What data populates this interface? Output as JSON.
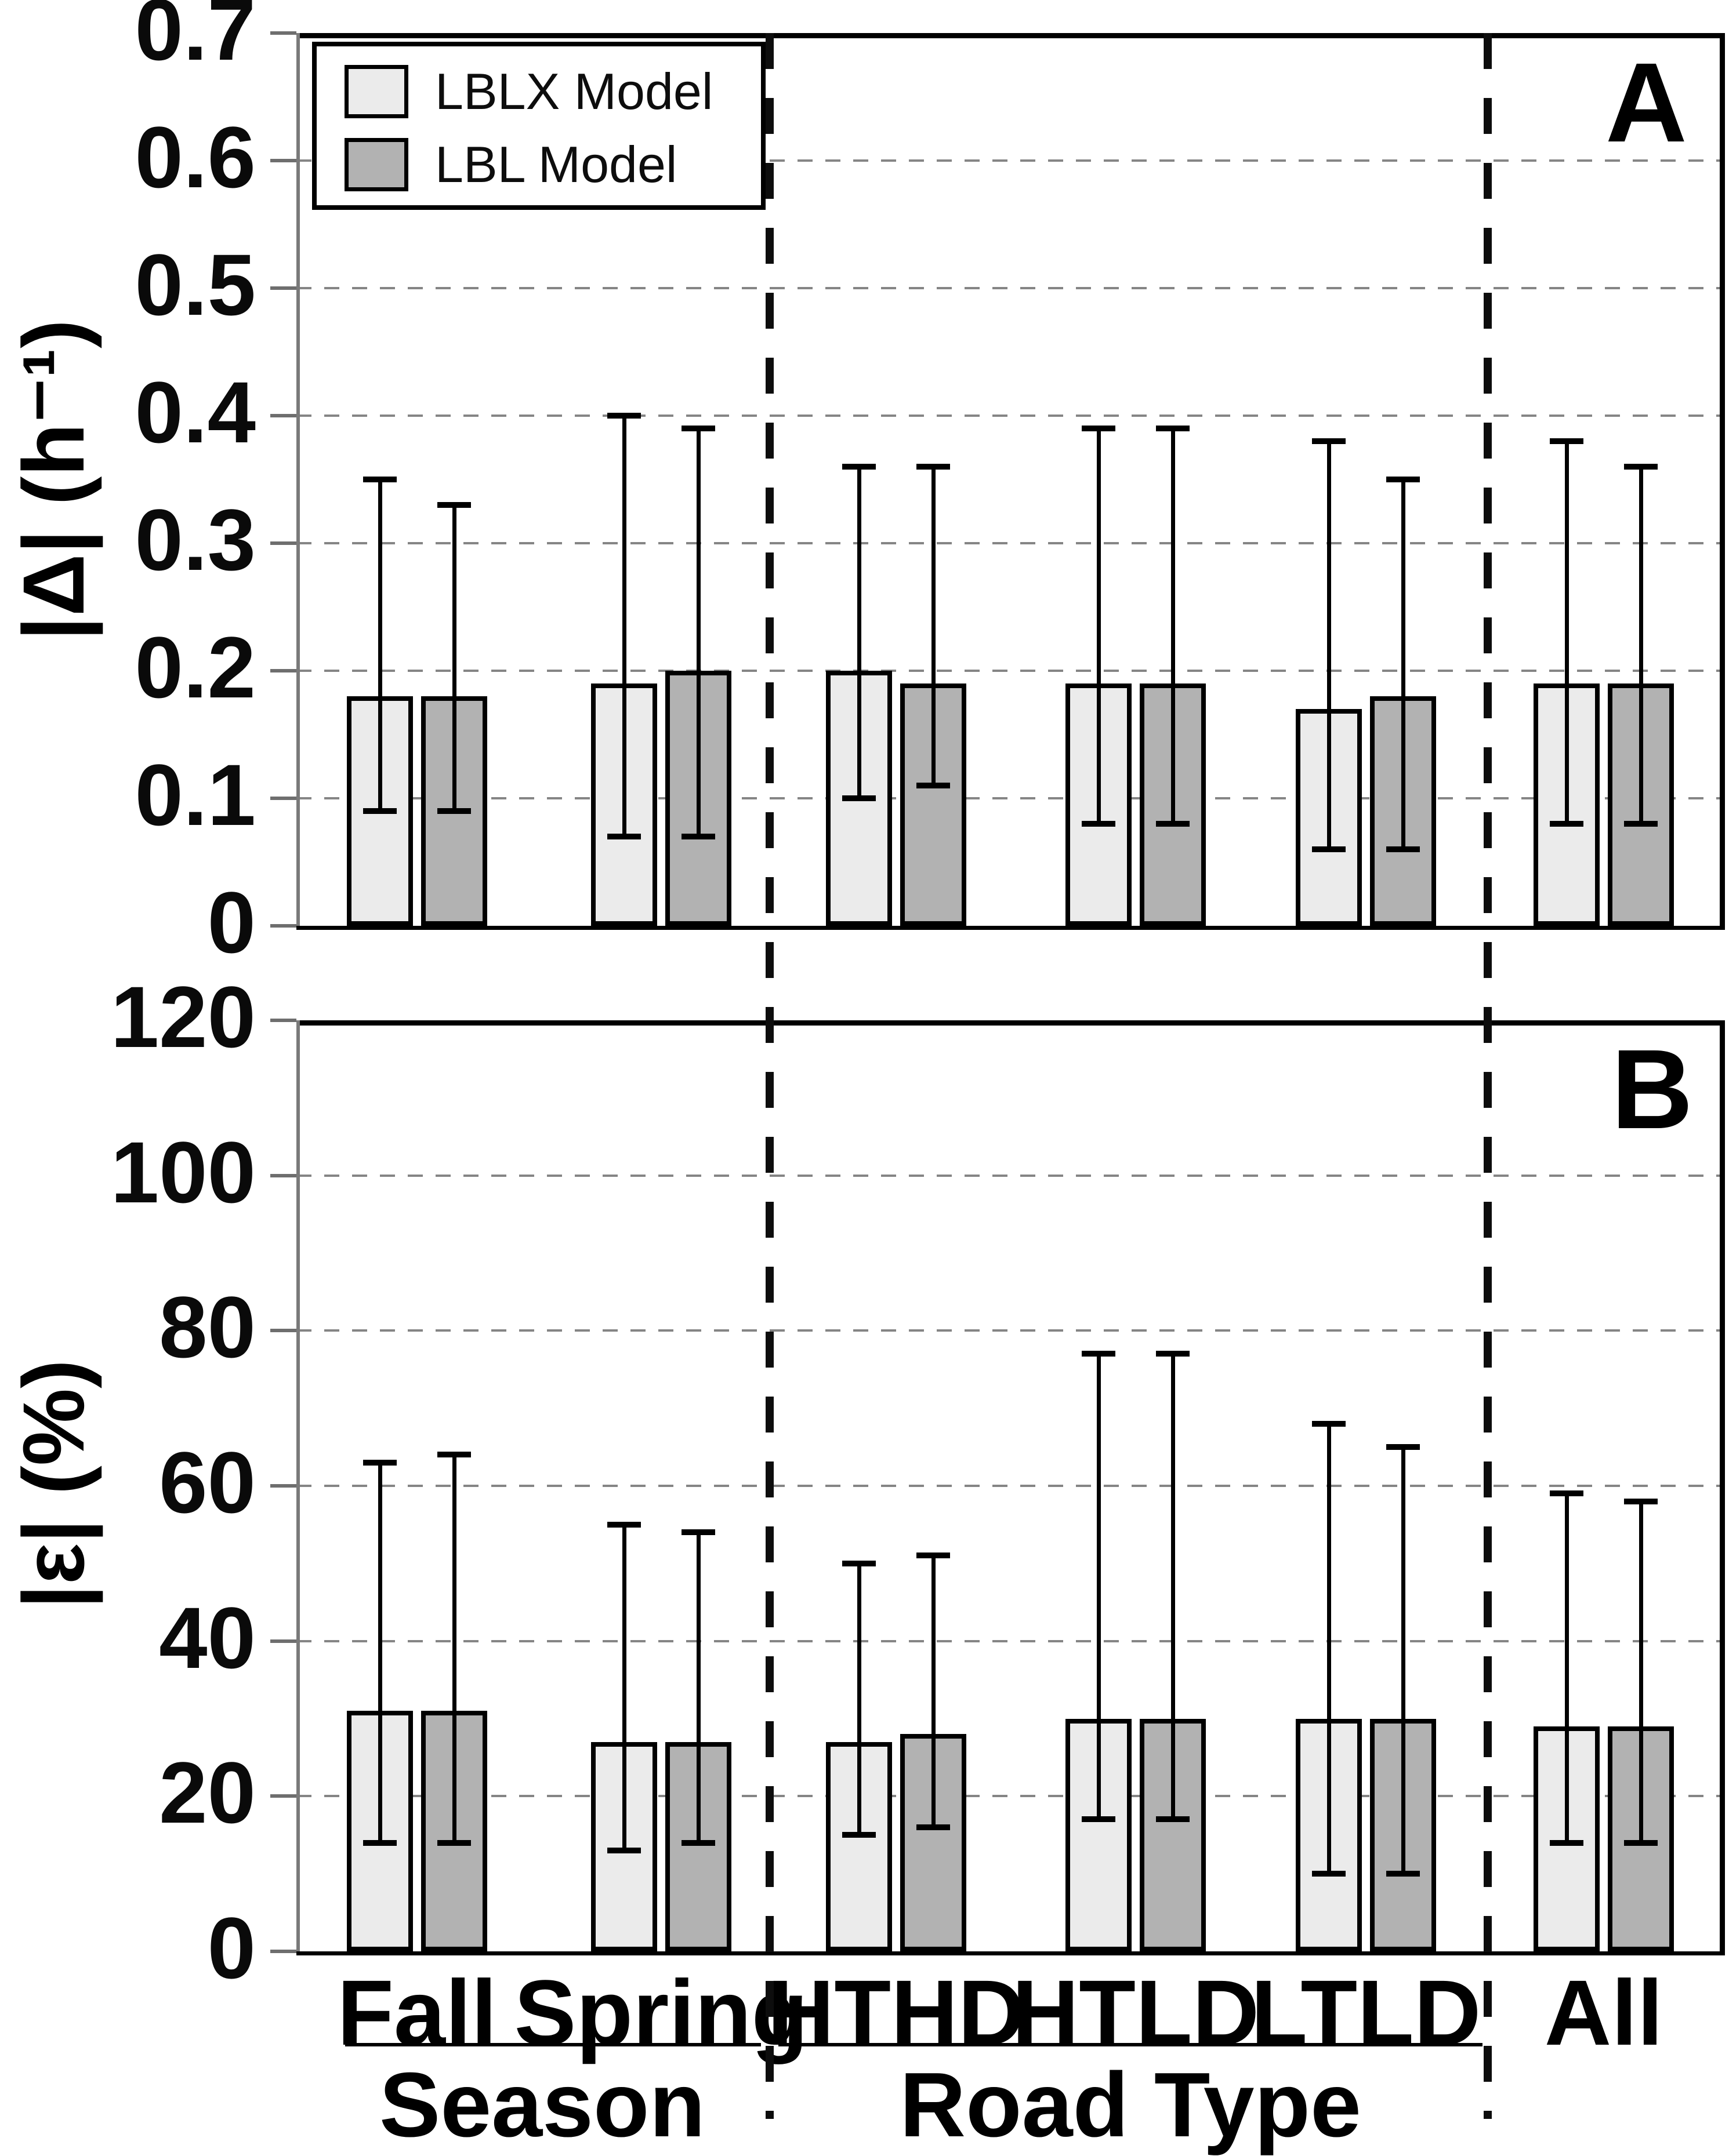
{
  "figure": {
    "legend": {
      "items": [
        {
          "label": "LBLX Model",
          "color": "#ebebeb"
        },
        {
          "label": "LBL Model",
          "color": "#b2b2b2"
        }
      ]
    },
    "panels": [
      {
        "letter": "A"
      },
      {
        "letter": "B"
      }
    ],
    "x_axis": {
      "categories": [
        "Fall",
        "Spring",
        "HTHD",
        "HTLD",
        "LTLD",
        "All"
      ],
      "sections": [
        {
          "label": "Season",
          "categories": [
            "Fall",
            "Spring"
          ]
        },
        {
          "label": "Road Type",
          "categories": [
            "HTHD",
            "HTLD",
            "LTLD"
          ]
        }
      ]
    },
    "colors": {
      "lblx_fill": "#ebebeb",
      "lbl_fill": "#b2b2b2",
      "grid": "#858585",
      "frame": "#000000",
      "spine": "#7a7a7a",
      "text": "#000000"
    }
  },
  "chart_data": [
    {
      "type": "bar",
      "panel_label": "A",
      "ylabel": "|Δ| (h⁻¹)",
      "ylim": [
        0,
        0.7
      ],
      "ytick_values": [
        0.7,
        0.6,
        0.5,
        0.4,
        0.3,
        0.2,
        0.1,
        0
      ],
      "ytick_labels": [
        "0.7",
        "0.6",
        "0.5",
        "0.4",
        "0.3",
        "0.2",
        "0.1",
        "0"
      ],
      "grid": "horizontal-dashed",
      "legend_position": "top-left",
      "categories": [
        "Fall",
        "Spring",
        "HTHD",
        "HTLD",
        "LTLD",
        "All"
      ],
      "series": [
        {
          "name": "LBLX Model",
          "values": [
            0.18,
            0.19,
            0.2,
            0.19,
            0.17,
            0.19
          ],
          "err_low": [
            0.09,
            0.07,
            0.1,
            0.08,
            0.06,
            0.08
          ],
          "err_high": [
            0.35,
            0.4,
            0.36,
            0.39,
            0.38,
            0.38
          ]
        },
        {
          "name": "LBL Model",
          "values": [
            0.18,
            0.2,
            0.19,
            0.19,
            0.18,
            0.19
          ],
          "err_low": [
            0.09,
            0.07,
            0.11,
            0.08,
            0.06,
            0.08
          ],
          "err_high": [
            0.33,
            0.39,
            0.36,
            0.39,
            0.35,
            0.36
          ]
        }
      ]
    },
    {
      "type": "bar",
      "panel_label": "B",
      "ylabel": "|ε| (%)",
      "ylim": [
        0,
        120
      ],
      "ytick_values": [
        120,
        100,
        80,
        60,
        40,
        20,
        0
      ],
      "ytick_labels": [
        "120",
        "100",
        "80",
        "60",
        "40",
        "20",
        "0"
      ],
      "grid": "horizontal-dashed",
      "categories": [
        "Fall",
        "Spring",
        "HTHD",
        "HTLD",
        "LTLD",
        "All"
      ],
      "series": [
        {
          "name": "LBLX Model",
          "values": [
            31,
            27,
            27,
            30,
            30,
            29
          ],
          "err_low": [
            14,
            13,
            15,
            17,
            10,
            14
          ],
          "err_high": [
            63,
            55,
            50,
            77,
            68,
            59
          ]
        },
        {
          "name": "LBL Model",
          "values": [
            31,
            27,
            28,
            30,
            30,
            29
          ],
          "err_low": [
            14,
            14,
            16,
            17,
            10,
            14
          ],
          "err_high": [
            64,
            54,
            51,
            77,
            65,
            58
          ]
        }
      ]
    }
  ]
}
